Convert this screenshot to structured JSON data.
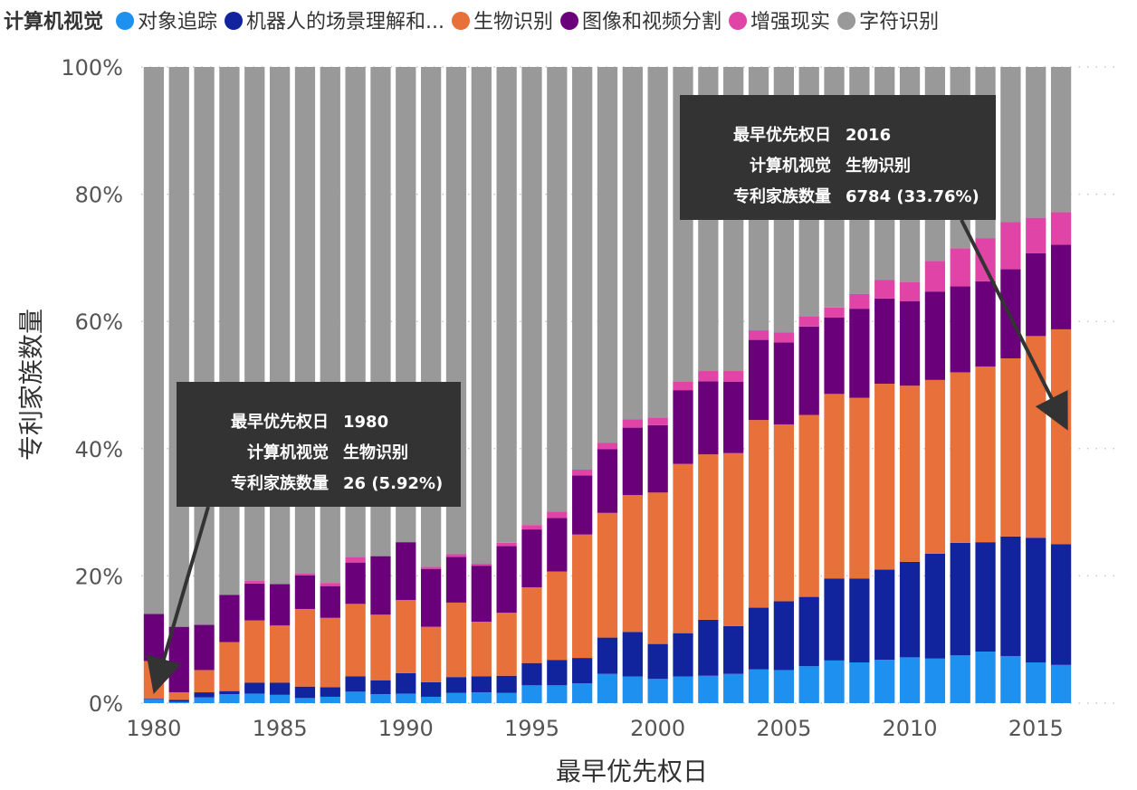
{
  "chart_data": {
    "type": "bar",
    "stacked": "percent",
    "legend_title": "计算机视觉",
    "legend_placement": "top",
    "xlabel": "最早优先权日",
    "ylabel": "专利家族数量",
    "ylim": [
      0,
      100
    ],
    "y_ticks": [
      "0%",
      "20%",
      "40%",
      "60%",
      "80%",
      "100%"
    ],
    "x_ticks": [
      "1980",
      "1985",
      "1990",
      "1995",
      "2000",
      "2005",
      "2010",
      "2015"
    ],
    "categories": [
      1980,
      1981,
      1982,
      1983,
      1984,
      1985,
      1986,
      1987,
      1988,
      1989,
      1990,
      1991,
      1992,
      1993,
      1994,
      1995,
      1996,
      1997,
      1998,
      1999,
      2000,
      2001,
      2002,
      2003,
      2004,
      2005,
      2006,
      2007,
      2008,
      2009,
      2010,
      2011,
      2012,
      2013,
      2014,
      2015,
      2016
    ],
    "series": [
      {
        "name": "对象追踪",
        "color": "#1E90F0",
        "values": [
          0.6,
          0.2,
          0.9,
          1.4,
          1.5,
          1.3,
          0.8,
          1.0,
          1.8,
          1.4,
          1.5,
          1.0,
          1.6,
          1.7,
          1.6,
          2.8,
          2.8,
          3.1,
          4.6,
          4.2,
          3.8,
          4.2,
          4.3,
          4.6,
          5.3,
          5.2,
          5.8,
          6.7,
          6.4,
          6.8,
          7.2,
          7.0,
          7.5,
          8.1,
          7.4,
          6.4,
          6.0
        ]
      },
      {
        "name": "机器人的场景理解和...",
        "color": "#12239E",
        "values": [
          0.1,
          0.3,
          0.8,
          0.5,
          1.7,
          1.9,
          1.8,
          1.5,
          2.4,
          2.2,
          3.2,
          2.3,
          2.5,
          2.5,
          2.7,
          3.5,
          4.0,
          4.0,
          5.7,
          7.0,
          5.5,
          6.8,
          8.8,
          7.5,
          9.7,
          10.8,
          10.9,
          12.9,
          13.2,
          14.2,
          15.0,
          16.5,
          17.7,
          17.2,
          18.8,
          19.6,
          19.0
        ]
      },
      {
        "name": "生物识别",
        "color": "#E8703A",
        "values": [
          5.92,
          1.2,
          3.5,
          7.7,
          9.8,
          9.0,
          12.2,
          10.9,
          11.4,
          10.3,
          11.5,
          8.7,
          11.7,
          8.6,
          9.9,
          11.9,
          13.9,
          19.4,
          19.6,
          21.5,
          23.8,
          26.6,
          26.0,
          27.2,
          29.5,
          27.8,
          28.6,
          29.0,
          28.4,
          29.2,
          27.7,
          27.3,
          26.8,
          27.6,
          28.0,
          31.7,
          33.76
        ]
      },
      {
        "name": "图像和视频分割",
        "color": "#6B007B",
        "values": [
          7.4,
          10.3,
          7.1,
          7.4,
          5.8,
          6.5,
          5.3,
          5.0,
          6.5,
          9.2,
          9.1,
          9.1,
          7.2,
          8.8,
          10.5,
          9.1,
          8.4,
          9.3,
          10.0,
          10.6,
          10.6,
          11.6,
          11.5,
          11.2,
          12.6,
          12.9,
          13.9,
          12.0,
          14.0,
          13.4,
          13.3,
          13.9,
          13.5,
          13.4,
          14.0,
          13.0,
          13.3
        ]
      },
      {
        "name": "增强现实",
        "color": "#E044A7",
        "values": [
          0,
          0,
          0,
          0,
          0.4,
          0,
          0.3,
          0.5,
          0.9,
          0,
          0,
          0.3,
          0.4,
          0.3,
          0.5,
          0.7,
          1.0,
          0.9,
          1.0,
          1.3,
          1.2,
          1.3,
          1.6,
          1.7,
          1.5,
          1.6,
          1.6,
          1.6,
          2.3,
          2.9,
          3.0,
          4.8,
          6.0,
          6.8,
          7.4,
          5.6,
          5.1
        ]
      },
      {
        "name": "字符识别",
        "color": "#999999",
        "values": [
          85.98,
          88.0,
          87.7,
          83.0,
          80.8,
          81.3,
          79.6,
          81.1,
          77.0,
          76.9,
          74.7,
          78.6,
          76.6,
          78.1,
          74.8,
          72.0,
          69.9,
          63.3,
          59.1,
          55.4,
          55.1,
          49.5,
          47.8,
          47.8,
          41.4,
          41.7,
          39.2,
          37.8,
          35.7,
          33.5,
          33.8,
          30.5,
          28.5,
          26.9,
          24.4,
          23.7,
          22.84
        ]
      }
    ],
    "tooltips": [
      {
        "year": 1980,
        "rows": [
          {
            "key": "最早优先权日",
            "value": "1980"
          },
          {
            "key": "计算机视觉",
            "value": "生物识别"
          },
          {
            "key": "专利家族数量",
            "value": "26 (5.92%)"
          }
        ]
      },
      {
        "year": 2016,
        "rows": [
          {
            "key": "最早优先权日",
            "value": "2016"
          },
          {
            "key": "计算机视觉",
            "value": "生物识别"
          },
          {
            "key": "专利家族数量",
            "value": "6784 (33.76%)"
          }
        ]
      }
    ],
    "grid": "dotted-horizontal"
  }
}
